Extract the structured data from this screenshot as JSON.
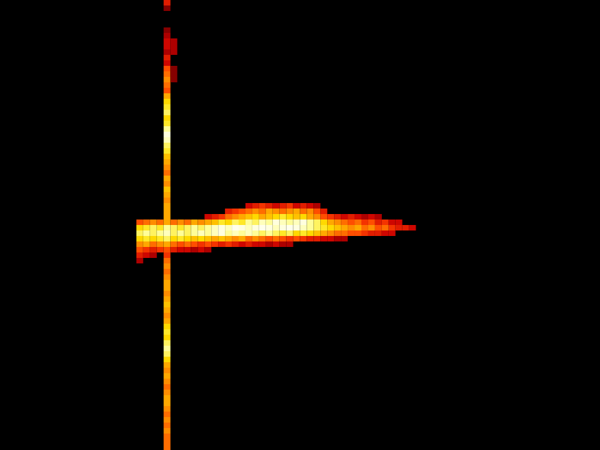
{
  "chart_data": {
    "type": "heatmap",
    "xlim": [
      0,
      88
    ],
    "ylim": [
      0,
      82
    ],
    "tick_labels": false,
    "grid": false,
    "color_range": [
      0,
      1
    ],
    "cells": [
      [
        24,
        0,
        0.35
      ],
      [
        24,
        1,
        0.2
      ],
      [
        24,
        5,
        0.2
      ],
      [
        24,
        6,
        0.25
      ],
      [
        24,
        7,
        0.3
      ],
      [
        24,
        8,
        0.3
      ],
      [
        24,
        9,
        0.25
      ],
      [
        24,
        10,
        0.35
      ],
      [
        24,
        11,
        0.3
      ],
      [
        24,
        12,
        0.45
      ],
      [
        24,
        13,
        0.5
      ],
      [
        24,
        14,
        0.55
      ],
      [
        24,
        15,
        0.5
      ],
      [
        24,
        16,
        0.45
      ],
      [
        24,
        17,
        0.6
      ],
      [
        24,
        18,
        0.7
      ],
      [
        24,
        19,
        0.75
      ],
      [
        24,
        20,
        0.8
      ],
      [
        24,
        21,
        0.7
      ],
      [
        24,
        22,
        0.75
      ],
      [
        24,
        23,
        0.85
      ],
      [
        24,
        24,
        0.95
      ],
      [
        24,
        25,
        0.9
      ],
      [
        24,
        26,
        0.8
      ],
      [
        24,
        27,
        0.75
      ],
      [
        24,
        28,
        0.65
      ],
      [
        24,
        29,
        0.6
      ],
      [
        24,
        30,
        0.55
      ],
      [
        24,
        31,
        0.5
      ],
      [
        24,
        32,
        0.6
      ],
      [
        24,
        33,
        0.55
      ],
      [
        24,
        34,
        0.65
      ],
      [
        24,
        35,
        0.6
      ],
      [
        24,
        36,
        0.55
      ],
      [
        24,
        37,
        0.6
      ],
      [
        24,
        38,
        0.6
      ],
      [
        24,
        39,
        0.6
      ],
      [
        24,
        47,
        0.5
      ],
      [
        24,
        48,
        0.55
      ],
      [
        24,
        49,
        0.5
      ],
      [
        24,
        50,
        0.55
      ],
      [
        24,
        51,
        0.6
      ],
      [
        24,
        52,
        0.6
      ],
      [
        24,
        53,
        0.55
      ],
      [
        24,
        54,
        0.6
      ],
      [
        24,
        55,
        0.65
      ],
      [
        24,
        56,
        0.6
      ],
      [
        24,
        57,
        0.55
      ],
      [
        24,
        58,
        0.6
      ],
      [
        24,
        59,
        0.7
      ],
      [
        24,
        60,
        0.75
      ],
      [
        24,
        61,
        0.7
      ],
      [
        24,
        62,
        0.8
      ],
      [
        24,
        63,
        0.85
      ],
      [
        24,
        64,
        0.8
      ],
      [
        24,
        65,
        0.7
      ],
      [
        24,
        66,
        0.6
      ],
      [
        24,
        67,
        0.55
      ],
      [
        24,
        68,
        0.6
      ],
      [
        24,
        69,
        0.55
      ],
      [
        24,
        70,
        0.5
      ],
      [
        24,
        71,
        0.55
      ],
      [
        24,
        72,
        0.6
      ],
      [
        24,
        73,
        0.6
      ],
      [
        24,
        74,
        0.55
      ],
      [
        24,
        75,
        0.5
      ],
      [
        24,
        76,
        0.55
      ],
      [
        24,
        77,
        0.5
      ],
      [
        24,
        78,
        0.55
      ],
      [
        24,
        79,
        0.5
      ],
      [
        24,
        80,
        0.5
      ],
      [
        24,
        81,
        0.5
      ],
      [
        25,
        7,
        0.25
      ],
      [
        25,
        8,
        0.25
      ],
      [
        25,
        9,
        0.25
      ],
      [
        25,
        12,
        0.2
      ],
      [
        25,
        13,
        0.2
      ],
      [
        25,
        14,
        0.2
      ],
      [
        36,
        37,
        0.3
      ],
      [
        37,
        37,
        0.35
      ],
      [
        38,
        37,
        0.4
      ],
      [
        39,
        37,
        0.35
      ],
      [
        40,
        37,
        0.3
      ],
      [
        41,
        37,
        0.35
      ],
      [
        42,
        37,
        0.4
      ],
      [
        43,
        37,
        0.3
      ],
      [
        44,
        37,
        0.35
      ],
      [
        45,
        37,
        0.3
      ],
      [
        46,
        37,
        0.25
      ],
      [
        33,
        38,
        0.35
      ],
      [
        34,
        38,
        0.4
      ],
      [
        35,
        38,
        0.45
      ],
      [
        36,
        38,
        0.5
      ],
      [
        37,
        38,
        0.55
      ],
      [
        38,
        38,
        0.5
      ],
      [
        39,
        38,
        0.6
      ],
      [
        40,
        38,
        0.55
      ],
      [
        41,
        38,
        0.5
      ],
      [
        42,
        38,
        0.55
      ],
      [
        43,
        38,
        0.6
      ],
      [
        44,
        38,
        0.5
      ],
      [
        45,
        38,
        0.55
      ],
      [
        46,
        38,
        0.45
      ],
      [
        47,
        38,
        0.35
      ],
      [
        30,
        39,
        0.3
      ],
      [
        31,
        39,
        0.35
      ],
      [
        32,
        39,
        0.4
      ],
      [
        33,
        39,
        0.5
      ],
      [
        34,
        39,
        0.55
      ],
      [
        35,
        39,
        0.6
      ],
      [
        36,
        39,
        0.65
      ],
      [
        37,
        39,
        0.7
      ],
      [
        38,
        39,
        0.6
      ],
      [
        39,
        39,
        0.65
      ],
      [
        40,
        39,
        0.7
      ],
      [
        41,
        39,
        0.75
      ],
      [
        42,
        39,
        0.7
      ],
      [
        43,
        39,
        0.65
      ],
      [
        44,
        39,
        0.7
      ],
      [
        45,
        39,
        0.6
      ],
      [
        46,
        39,
        0.55
      ],
      [
        47,
        39,
        0.45
      ],
      [
        48,
        39,
        0.4
      ],
      [
        49,
        39,
        0.35
      ],
      [
        50,
        39,
        0.3
      ],
      [
        51,
        39,
        0.35
      ],
      [
        52,
        39,
        0.3
      ],
      [
        53,
        39,
        0.25
      ],
      [
        54,
        39,
        0.3
      ],
      [
        55,
        39,
        0.25
      ],
      [
        20,
        40,
        0.45
      ],
      [
        21,
        40,
        0.5
      ],
      [
        22,
        40,
        0.55
      ],
      [
        23,
        40,
        0.5
      ],
      [
        24,
        40,
        0.6
      ],
      [
        25,
        40,
        0.5
      ],
      [
        26,
        40,
        0.55
      ],
      [
        27,
        40,
        0.5
      ],
      [
        28,
        40,
        0.6
      ],
      [
        29,
        40,
        0.55
      ],
      [
        30,
        40,
        0.6
      ],
      [
        31,
        40,
        0.65
      ],
      [
        32,
        40,
        0.75
      ],
      [
        33,
        40,
        0.7
      ],
      [
        34,
        40,
        0.8
      ],
      [
        35,
        40,
        0.75
      ],
      [
        36,
        40,
        0.85
      ],
      [
        37,
        40,
        0.8
      ],
      [
        38,
        40,
        0.9
      ],
      [
        39,
        40,
        0.85
      ],
      [
        40,
        40,
        0.95
      ],
      [
        41,
        40,
        0.9
      ],
      [
        42,
        40,
        0.85
      ],
      [
        43,
        40,
        0.9
      ],
      [
        44,
        40,
        0.95
      ],
      [
        45,
        40,
        0.85
      ],
      [
        46,
        40,
        0.8
      ],
      [
        47,
        40,
        0.7
      ],
      [
        48,
        40,
        0.6
      ],
      [
        49,
        40,
        0.55
      ],
      [
        50,
        40,
        0.5
      ],
      [
        51,
        40,
        0.45
      ],
      [
        52,
        40,
        0.5
      ],
      [
        53,
        40,
        0.4
      ],
      [
        54,
        40,
        0.45
      ],
      [
        55,
        40,
        0.35
      ],
      [
        56,
        40,
        0.4
      ],
      [
        57,
        40,
        0.3
      ],
      [
        58,
        40,
        0.3
      ],
      [
        20,
        41,
        0.7
      ],
      [
        21,
        41,
        0.75
      ],
      [
        22,
        41,
        0.8
      ],
      [
        23,
        41,
        0.75
      ],
      [
        24,
        41,
        0.85
      ],
      [
        25,
        41,
        0.8
      ],
      [
        26,
        41,
        0.75
      ],
      [
        27,
        41,
        0.8
      ],
      [
        28,
        41,
        0.85
      ],
      [
        29,
        41,
        0.8
      ],
      [
        30,
        41,
        0.85
      ],
      [
        31,
        41,
        0.9
      ],
      [
        32,
        41,
        0.95
      ],
      [
        33,
        41,
        0.9
      ],
      [
        34,
        41,
        0.97
      ],
      [
        35,
        41,
        0.95
      ],
      [
        36,
        41,
        0.9
      ],
      [
        37,
        41,
        0.95
      ],
      [
        38,
        41,
        0.97
      ],
      [
        39,
        41,
        0.95
      ],
      [
        40,
        41,
        0.9
      ],
      [
        41,
        41,
        0.95
      ],
      [
        42,
        41,
        0.97
      ],
      [
        43,
        41,
        0.95
      ],
      [
        44,
        41,
        0.9
      ],
      [
        45,
        41,
        0.85
      ],
      [
        46,
        41,
        0.8
      ],
      [
        47,
        41,
        0.75
      ],
      [
        48,
        41,
        0.7
      ],
      [
        49,
        41,
        0.65
      ],
      [
        50,
        41,
        0.6
      ],
      [
        51,
        41,
        0.55
      ],
      [
        52,
        41,
        0.6
      ],
      [
        53,
        41,
        0.5
      ],
      [
        54,
        41,
        0.55
      ],
      [
        55,
        41,
        0.45
      ],
      [
        56,
        41,
        0.5
      ],
      [
        57,
        41,
        0.4
      ],
      [
        58,
        41,
        0.35
      ],
      [
        59,
        41,
        0.35
      ],
      [
        60,
        41,
        0.3
      ],
      [
        20,
        42,
        0.8
      ],
      [
        21,
        42,
        0.85
      ],
      [
        22,
        42,
        0.8
      ],
      [
        23,
        42,
        0.85
      ],
      [
        24,
        42,
        0.9
      ],
      [
        25,
        42,
        0.8
      ],
      [
        26,
        42,
        0.85
      ],
      [
        27,
        42,
        0.8
      ],
      [
        28,
        42,
        0.85
      ],
      [
        29,
        42,
        0.9
      ],
      [
        30,
        42,
        0.85
      ],
      [
        31,
        42,
        0.9
      ],
      [
        32,
        42,
        0.95
      ],
      [
        33,
        42,
        0.85
      ],
      [
        34,
        42,
        0.9
      ],
      [
        35,
        42,
        0.85
      ],
      [
        36,
        42,
        0.9
      ],
      [
        37,
        42,
        0.85
      ],
      [
        38,
        42,
        0.8
      ],
      [
        39,
        42,
        0.85
      ],
      [
        40,
        42,
        0.8
      ],
      [
        41,
        42,
        0.75
      ],
      [
        42,
        42,
        0.8
      ],
      [
        43,
        42,
        0.7
      ],
      [
        44,
        42,
        0.75
      ],
      [
        45,
        42,
        0.7
      ],
      [
        46,
        42,
        0.65
      ],
      [
        47,
        42,
        0.6
      ],
      [
        48,
        42,
        0.55
      ],
      [
        49,
        42,
        0.5
      ],
      [
        50,
        42,
        0.5
      ],
      [
        51,
        42,
        0.45
      ],
      [
        52,
        42,
        0.45
      ],
      [
        53,
        42,
        0.4
      ],
      [
        54,
        42,
        0.35
      ],
      [
        55,
        42,
        0.35
      ],
      [
        56,
        42,
        0.3
      ],
      [
        57,
        42,
        0.3
      ],
      [
        20,
        43,
        0.7
      ],
      [
        21,
        43,
        0.75
      ],
      [
        22,
        43,
        0.7
      ],
      [
        23,
        43,
        0.75
      ],
      [
        24,
        43,
        0.8
      ],
      [
        25,
        43,
        0.7
      ],
      [
        26,
        43,
        0.75
      ],
      [
        27,
        43,
        0.7
      ],
      [
        28,
        43,
        0.65
      ],
      [
        29,
        43,
        0.7
      ],
      [
        30,
        43,
        0.65
      ],
      [
        31,
        43,
        0.6
      ],
      [
        32,
        43,
        0.65
      ],
      [
        33,
        43,
        0.6
      ],
      [
        34,
        43,
        0.55
      ],
      [
        35,
        43,
        0.6
      ],
      [
        36,
        43,
        0.5
      ],
      [
        37,
        43,
        0.55
      ],
      [
        38,
        43,
        0.5
      ],
      [
        39,
        43,
        0.45
      ],
      [
        40,
        43,
        0.5
      ],
      [
        41,
        43,
        0.45
      ],
      [
        42,
        43,
        0.4
      ],
      [
        43,
        43,
        0.45
      ],
      [
        44,
        43,
        0.4
      ],
      [
        45,
        43,
        0.35
      ],
      [
        46,
        43,
        0.35
      ],
      [
        47,
        43,
        0.3
      ],
      [
        48,
        43,
        0.3
      ],
      [
        49,
        43,
        0.25
      ],
      [
        50,
        43,
        0.25
      ],
      [
        20,
        44,
        0.55
      ],
      [
        21,
        44,
        0.6
      ],
      [
        22,
        44,
        0.5
      ],
      [
        23,
        44,
        0.55
      ],
      [
        24,
        44,
        0.6
      ],
      [
        25,
        44,
        0.5
      ],
      [
        26,
        44,
        0.45
      ],
      [
        27,
        44,
        0.5
      ],
      [
        28,
        44,
        0.45
      ],
      [
        29,
        44,
        0.4
      ],
      [
        30,
        44,
        0.45
      ],
      [
        31,
        44,
        0.4
      ],
      [
        32,
        44,
        0.35
      ],
      [
        33,
        44,
        0.4
      ],
      [
        34,
        44,
        0.35
      ],
      [
        35,
        44,
        0.3
      ],
      [
        36,
        44,
        0.35
      ],
      [
        37,
        44,
        0.3
      ],
      [
        38,
        44,
        0.3
      ],
      [
        39,
        44,
        0.25
      ],
      [
        40,
        44,
        0.3
      ],
      [
        41,
        44,
        0.25
      ],
      [
        42,
        44,
        0.25
      ],
      [
        20,
        45,
        0.45
      ],
      [
        21,
        45,
        0.4
      ],
      [
        22,
        45,
        0.35
      ],
      [
        23,
        45,
        0.4
      ],
      [
        24,
        45,
        0.45
      ],
      [
        25,
        45,
        0.35
      ],
      [
        26,
        45,
        0.3
      ],
      [
        27,
        45,
        0.3
      ],
      [
        28,
        45,
        0.25
      ],
      [
        29,
        45,
        0.3
      ],
      [
        30,
        45,
        0.25
      ],
      [
        20,
        46,
        0.35
      ],
      [
        21,
        46,
        0.3
      ],
      [
        22,
        46,
        0.25
      ],
      [
        24,
        46,
        0.4
      ],
      [
        20,
        47,
        0.25
      ]
    ]
  }
}
